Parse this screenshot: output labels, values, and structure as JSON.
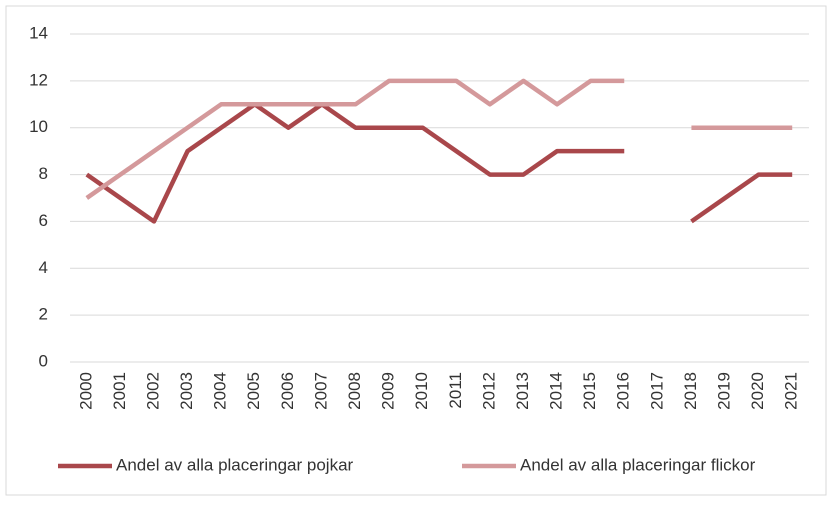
{
  "chart_data": {
    "type": "line",
    "categories": [
      "2000",
      "2001",
      "2002",
      "2003",
      "2004",
      "2005",
      "2006",
      "2007",
      "2008",
      "2009",
      "2010",
      "2011",
      "2012",
      "2013",
      "2014",
      "2015",
      "2016",
      "2017",
      "2018",
      "2019",
      "2020",
      "2021"
    ],
    "series": [
      {
        "name": "Andel av alla placeringar pojkar",
        "color": "#a9474b",
        "values": [
          8,
          7,
          6,
          9,
          10,
          11,
          10,
          11,
          10,
          10,
          10,
          9,
          8,
          8,
          9,
          9,
          9,
          null,
          6,
          7,
          8,
          8
        ]
      },
      {
        "name": "Andel av alla placeringar flickor",
        "color": "#d4999b",
        "values": [
          7,
          8,
          9,
          10,
          11,
          11,
          11,
          11,
          11,
          12,
          12,
          12,
          11,
          12,
          11,
          12,
          12,
          null,
          10,
          10,
          10,
          10
        ]
      }
    ],
    "ylim": [
      0,
      14
    ],
    "yticks": [
      0,
      2,
      4,
      6,
      8,
      10,
      12,
      14
    ],
    "grid": true,
    "legend": "bottom"
  }
}
